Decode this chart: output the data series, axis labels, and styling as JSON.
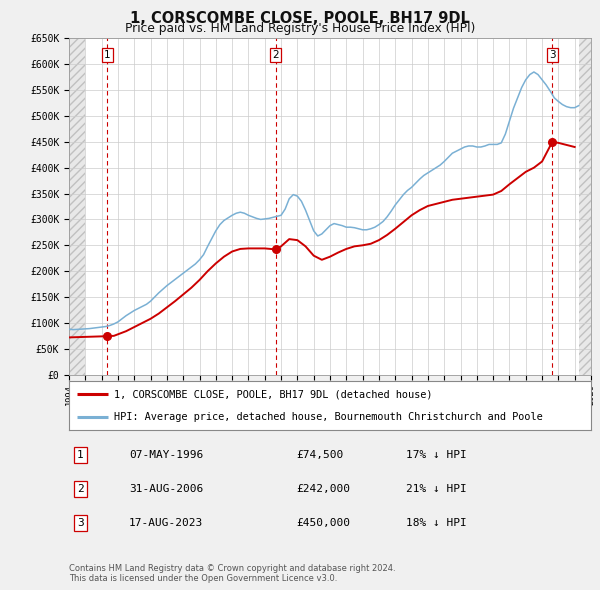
{
  "title": "1, CORSCOMBE CLOSE, POOLE, BH17 9DL",
  "subtitle": "Price paid vs. HM Land Registry's House Price Index (HPI)",
  "background_color": "#f0f0f0",
  "plot_background": "#ffffff",
  "hatch_color": "#d8d8d8",
  "legend_line1": "1, CORSCOMBE CLOSE, POOLE, BH17 9DL (detached house)",
  "legend_line2": "HPI: Average price, detached house, Bournemouth Christchurch and Poole",
  "sale_color": "#cc0000",
  "hpi_color": "#7ab0d4",
  "transactions": [
    {
      "num": 1,
      "date": "07-MAY-1996",
      "price": 74500,
      "year": 1996.35,
      "hpi_pct": "17% ↓ HPI"
    },
    {
      "num": 2,
      "date": "31-AUG-2006",
      "price": 242000,
      "year": 2006.66,
      "hpi_pct": "21% ↓ HPI"
    },
    {
      "num": 3,
      "date": "17-AUG-2023",
      "price": 450000,
      "year": 2023.63,
      "hpi_pct": "18% ↓ HPI"
    }
  ],
  "footer": "Contains HM Land Registry data © Crown copyright and database right 2024.\nThis data is licensed under the Open Government Licence v3.0.",
  "xmin": 1994,
  "xmax": 2026,
  "ymin": 0,
  "ymax": 650000,
  "yticks": [
    0,
    50000,
    100000,
    150000,
    200000,
    250000,
    300000,
    350000,
    400000,
    450000,
    500000,
    550000,
    600000,
    650000
  ],
  "ytick_labels": [
    "£0",
    "£50K",
    "£100K",
    "£150K",
    "£200K",
    "£250K",
    "£300K",
    "£350K",
    "£400K",
    "£450K",
    "£500K",
    "£550K",
    "£600K",
    "£650K"
  ],
  "hpi_data_x": [
    1994.0,
    1994.25,
    1994.5,
    1994.75,
    1995.0,
    1995.25,
    1995.5,
    1995.75,
    1996.0,
    1996.25,
    1996.5,
    1996.75,
    1997.0,
    1997.25,
    1997.5,
    1997.75,
    1998.0,
    1998.25,
    1998.5,
    1998.75,
    1999.0,
    1999.25,
    1999.5,
    1999.75,
    2000.0,
    2000.25,
    2000.5,
    2000.75,
    2001.0,
    2001.25,
    2001.5,
    2001.75,
    2002.0,
    2002.25,
    2002.5,
    2002.75,
    2003.0,
    2003.25,
    2003.5,
    2003.75,
    2004.0,
    2004.25,
    2004.5,
    2004.75,
    2005.0,
    2005.25,
    2005.5,
    2005.75,
    2006.0,
    2006.25,
    2006.5,
    2006.75,
    2007.0,
    2007.25,
    2007.5,
    2007.75,
    2008.0,
    2008.25,
    2008.5,
    2008.75,
    2009.0,
    2009.25,
    2009.5,
    2009.75,
    2010.0,
    2010.25,
    2010.5,
    2010.75,
    2011.0,
    2011.25,
    2011.5,
    2011.75,
    2012.0,
    2012.25,
    2012.5,
    2012.75,
    2013.0,
    2013.25,
    2013.5,
    2013.75,
    2014.0,
    2014.25,
    2014.5,
    2014.75,
    2015.0,
    2015.25,
    2015.5,
    2015.75,
    2016.0,
    2016.25,
    2016.5,
    2016.75,
    2017.0,
    2017.25,
    2017.5,
    2017.75,
    2018.0,
    2018.25,
    2018.5,
    2018.75,
    2019.0,
    2019.25,
    2019.5,
    2019.75,
    2020.0,
    2020.25,
    2020.5,
    2020.75,
    2021.0,
    2021.25,
    2021.5,
    2021.75,
    2022.0,
    2022.25,
    2022.5,
    2022.75,
    2023.0,
    2023.25,
    2023.5,
    2023.75,
    2024.0,
    2024.25,
    2024.5,
    2024.75,
    2025.0,
    2025.25
  ],
  "hpi_data_y": [
    88000,
    87000,
    87500,
    88000,
    88500,
    89000,
    90000,
    91000,
    92000,
    93000,
    95000,
    98000,
    102000,
    108000,
    114000,
    119000,
    124000,
    128000,
    132000,
    136000,
    142000,
    150000,
    158000,
    165000,
    172000,
    178000,
    184000,
    190000,
    196000,
    202000,
    208000,
    214000,
    222000,
    232000,
    248000,
    263000,
    278000,
    290000,
    298000,
    303000,
    308000,
    312000,
    314000,
    312000,
    308000,
    305000,
    302000,
    300000,
    301000,
    302000,
    304000,
    306000,
    308000,
    320000,
    340000,
    348000,
    345000,
    335000,
    318000,
    298000,
    278000,
    268000,
    272000,
    280000,
    288000,
    292000,
    290000,
    288000,
    285000,
    285000,
    284000,
    282000,
    280000,
    280000,
    282000,
    285000,
    290000,
    296000,
    305000,
    316000,
    328000,
    338000,
    348000,
    356000,
    362000,
    370000,
    378000,
    385000,
    390000,
    395000,
    400000,
    405000,
    412000,
    420000,
    428000,
    432000,
    436000,
    440000,
    442000,
    442000,
    440000,
    440000,
    442000,
    445000,
    445000,
    445000,
    448000,
    465000,
    490000,
    515000,
    535000,
    555000,
    570000,
    580000,
    585000,
    580000,
    570000,
    560000,
    548000,
    535000,
    528000,
    522000,
    518000,
    516000,
    516000,
    520000
  ],
  "price_data_x": [
    1994.0,
    1994.5,
    1995.0,
    1995.5,
    1996.0,
    1996.35,
    1996.75,
    1997.0,
    1997.5,
    1998.0,
    1998.5,
    1999.0,
    1999.5,
    2000.0,
    2000.5,
    2001.0,
    2001.5,
    2002.0,
    2002.5,
    2003.0,
    2003.5,
    2004.0,
    2004.5,
    2005.0,
    2005.5,
    2006.0,
    2006.35,
    2006.66,
    2006.75,
    2007.0,
    2007.25,
    2007.5,
    2008.0,
    2008.5,
    2009.0,
    2009.5,
    2010.0,
    2010.5,
    2011.0,
    2011.5,
    2012.0,
    2012.5,
    2013.0,
    2013.5,
    2014.0,
    2014.5,
    2015.0,
    2015.5,
    2016.0,
    2016.5,
    2017.0,
    2017.5,
    2018.0,
    2018.5,
    2019.0,
    2019.5,
    2020.0,
    2020.5,
    2021.0,
    2021.5,
    2022.0,
    2022.5,
    2023.0,
    2023.63,
    2024.0,
    2024.5,
    2025.0
  ],
  "price_data_y": [
    72000,
    72500,
    73000,
    73500,
    74000,
    74500,
    75000,
    78000,
    84000,
    92000,
    100000,
    108000,
    118000,
    130000,
    142000,
    155000,
    168000,
    183000,
    200000,
    215000,
    228000,
    238000,
    243000,
    244000,
    244000,
    244000,
    243000,
    242000,
    243000,
    248000,
    255000,
    262000,
    260000,
    248000,
    230000,
    222000,
    228000,
    236000,
    243000,
    248000,
    250000,
    253000,
    260000,
    270000,
    282000,
    295000,
    308000,
    318000,
    326000,
    330000,
    334000,
    338000,
    340000,
    342000,
    344000,
    346000,
    348000,
    355000,
    368000,
    380000,
    392000,
    400000,
    412000,
    450000,
    448000,
    444000,
    440000
  ]
}
